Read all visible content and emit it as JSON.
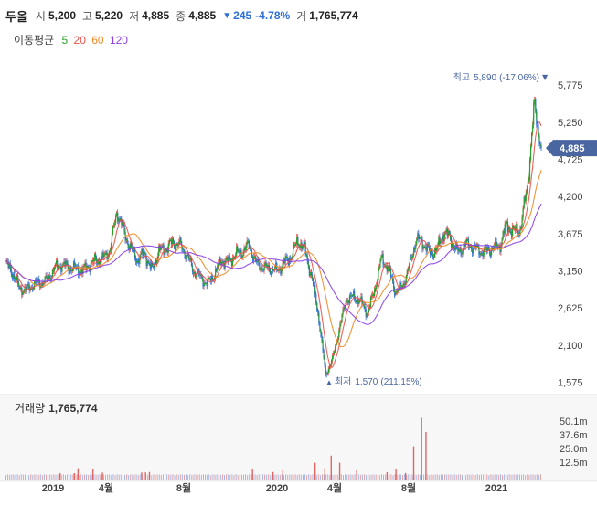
{
  "header": {
    "name": "두올",
    "open_label": "시",
    "open": "5,200",
    "high_label": "고",
    "high": "5,220",
    "low_label": "저",
    "low": "4,885",
    "close_label": "종",
    "close": "4,885",
    "change_arrow": "▼",
    "change": "245",
    "change_pct": "-4.78%",
    "volume_label": "거",
    "volume": "1,765,774"
  },
  "moving_average": {
    "label": "이동평균",
    "items": [
      {
        "period": "5",
        "color": "#2ca02c"
      },
      {
        "period": "20",
        "color": "#e8524a"
      },
      {
        "period": "60",
        "color": "#f08a24"
      },
      {
        "period": "120",
        "color": "#8a3ee8"
      }
    ]
  },
  "chart_data": {
    "type": "line",
    "price_axis": {
      "ticks": [
        "5,775",
        "5,250",
        "4,725",
        "4,200",
        "3,675",
        "3,150",
        "2,625",
        "2,100",
        "1,575"
      ],
      "ylim": [
        1400,
        6100
      ]
    },
    "x_ticks": [
      "2019",
      "4월",
      "8월",
      "2020",
      "4월",
      "8월",
      "2021"
    ],
    "current_price": {
      "value": 4885,
      "label": "4,885"
    },
    "max_annotation": {
      "label": "최고",
      "value": "5,890",
      "pct": "(-17.06%)",
      "arrow": "▼",
      "price": 5890
    },
    "min_annotation": {
      "label": "최저",
      "value": "1,570",
      "pct": "(211.15%)",
      "arrow": "▲",
      "price": 1570
    },
    "price_series": [
      3260,
      3120,
      2900,
      2880,
      2960,
      2980,
      3020,
      3180,
      3240,
      3200,
      3180,
      3150,
      3230,
      3300,
      3320,
      3450,
      4000,
      3700,
      3450,
      3300,
      3400,
      3150,
      3430,
      3460,
      3550,
      3520,
      3380,
      3150,
      3060,
      2960,
      3100,
      3300,
      3270,
      3380,
      3420,
      3520,
      3250,
      3200,
      3180,
      3150,
      3260,
      3350,
      3580,
      3450,
      3060,
      2500,
      1680,
      1900,
      2350,
      2750,
      2780,
      2720,
      2550,
      2870,
      3320,
      3200,
      2860,
      2920,
      3200,
      3600,
      3550,
      3400,
      3450,
      3700,
      3600,
      3400,
      3520,
      3500,
      3430,
      3420,
      3480,
      3500,
      3800,
      3700,
      3750,
      4350,
      5500,
      4885
    ],
    "volume_axis": {
      "ticks": [
        "50.1m",
        "37.6m",
        "25.0m",
        "12.5m"
      ],
      "ylim": [
        0,
        55
      ]
    },
    "volume_label": "거래량",
    "volume_value": "1,765,774",
    "volume_spikes": [
      [
        0.12,
        2.5
      ],
      [
        0.39,
        2.5
      ],
      [
        0.46,
        7.0
      ],
      [
        0.74,
        6.2
      ],
      [
        0.92,
        3.0
      ],
      [
        1.45,
        3.1
      ],
      [
        1.5,
        3.2
      ],
      [
        1.55,
        3.5
      ],
      [
        2.73,
        6.0
      ],
      [
        2.95,
        3.5
      ],
      [
        3.09,
        5.2
      ],
      [
        3.65,
        12.0
      ],
      [
        3.82,
        7.0
      ],
      [
        3.93,
        18.5
      ],
      [
        4.06,
        12.0
      ],
      [
        4.29,
        5.0
      ],
      [
        4.7,
        3.4
      ],
      [
        4.82,
        6.0
      ],
      [
        4.95,
        2.6
      ],
      [
        5.05,
        27.0
      ],
      [
        5.14,
        53.0
      ],
      [
        5.19,
        40.0
      ]
    ]
  }
}
